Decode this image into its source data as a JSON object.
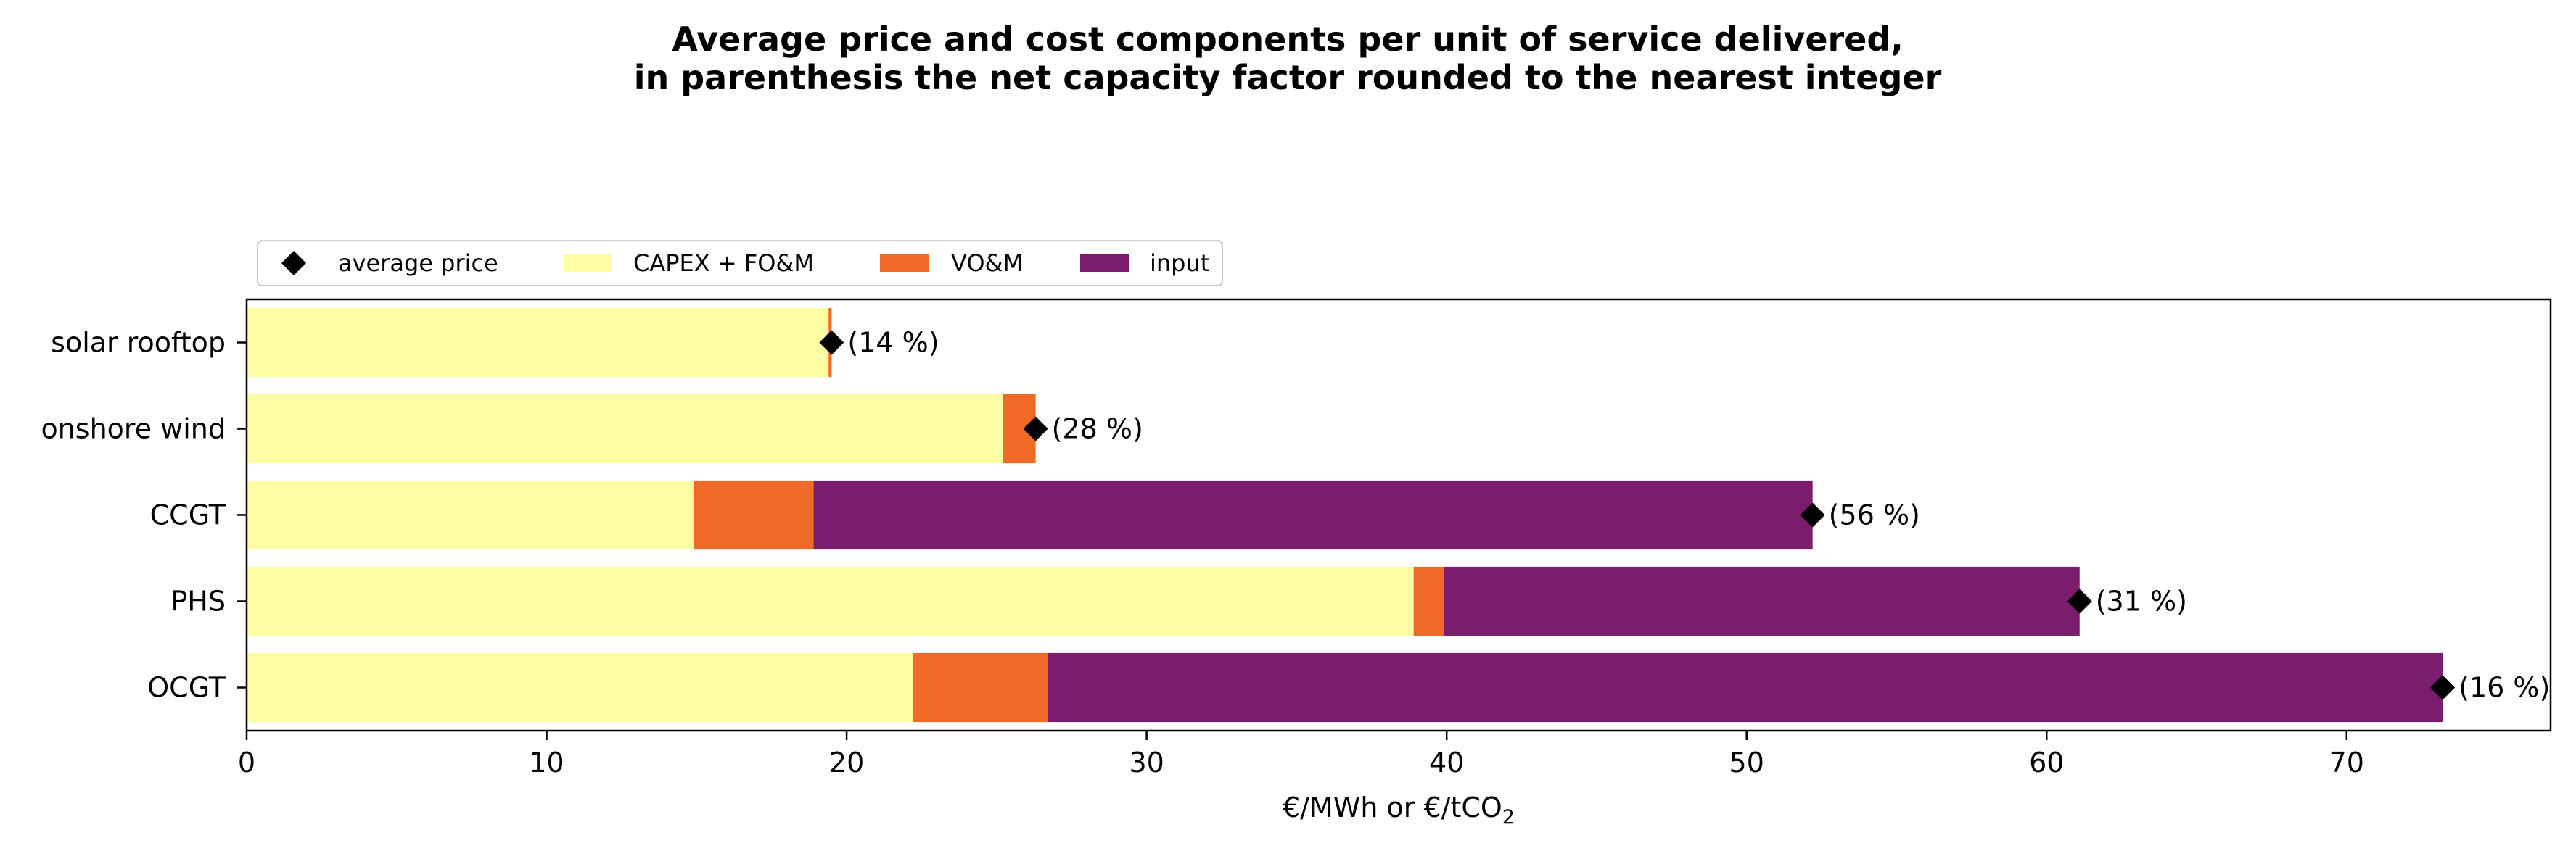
{
  "chart_data": {
    "type": "bar",
    "orientation": "horizontal",
    "stacked": true,
    "title": "Average price and cost components per unit of service delivered,",
    "subtitle": "in parenthesis the net capacity factor rounded to the nearest integer",
    "xlabel": "€/MWh or €/tCO",
    "xlabel_subscript": "2",
    "ylabel": "",
    "xlim": [
      0,
      76.8
    ],
    "xticks": [
      0,
      10,
      20,
      30,
      40,
      50,
      60,
      70
    ],
    "grid": false,
    "legend_position": "top-left",
    "categories": [
      "solar rooftop",
      "onshore wind",
      "CCGT",
      "PHS",
      "OCGT"
    ],
    "series": [
      {
        "name": "CAPEX + FO&M",
        "color": "#fcfda4",
        "values": [
          19.4,
          25.2,
          14.9,
          38.9,
          22.2
        ]
      },
      {
        "name": "VO&M",
        "color": "#ef6a27",
        "values": [
          0.1,
          1.1,
          4.0,
          1.0,
          4.5
        ]
      },
      {
        "name": "input",
        "color": "#7a1d6c",
        "values": [
          0,
          0,
          33.3,
          21.2,
          46.5
        ]
      }
    ],
    "average_price": {
      "name": "average price",
      "color": "#000000",
      "values": [
        19.5,
        26.3,
        52.2,
        61.1,
        73.2
      ]
    },
    "annotations": [
      "(14 %)",
      "(28 %)",
      "(56 %)",
      "(31 %)",
      "(16 %)"
    ]
  }
}
